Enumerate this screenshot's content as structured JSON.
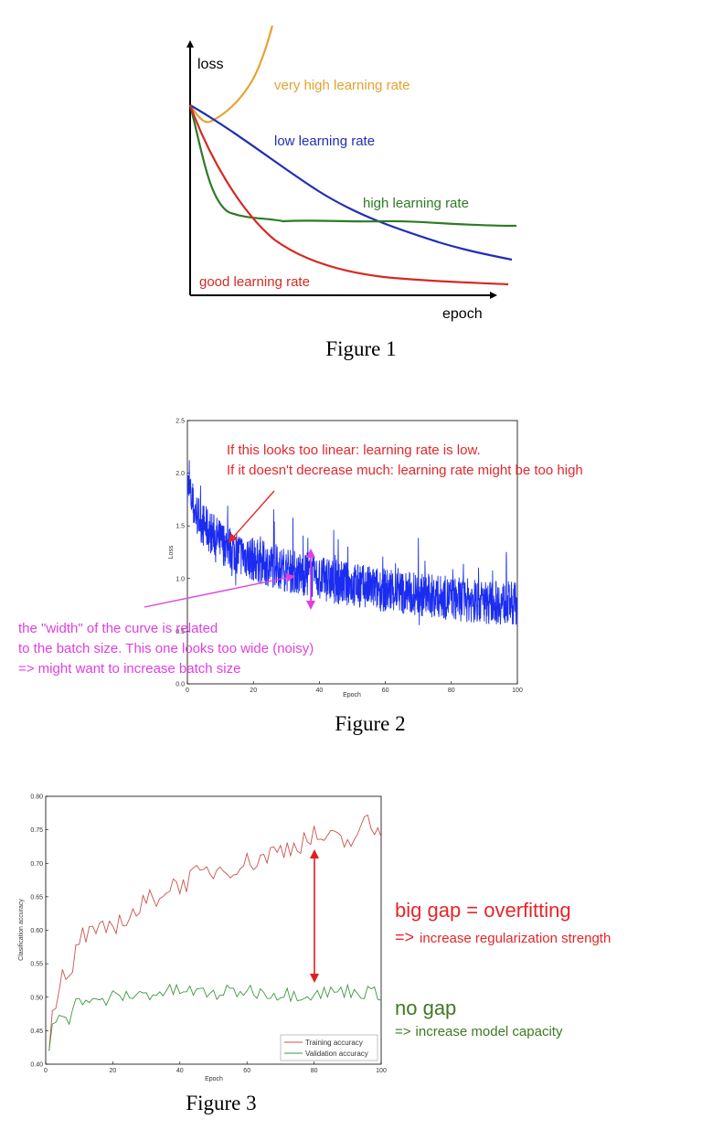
{
  "chart_data": [
    {
      "type": "line",
      "caption": "Figure 1",
      "ylabel": "loss",
      "xlabel": "epoch",
      "series": [
        {
          "name": "very high learning rate",
          "color": "#E6A22F"
        },
        {
          "name": "low learning rate",
          "color": "#1F2FB5"
        },
        {
          "name": "high learning rate",
          "color": "#2E7A26"
        },
        {
          "name": "good learning rate",
          "color": "#D42A24"
        }
      ]
    },
    {
      "type": "line",
      "caption": "Figure 2",
      "xlabel": "Epoch",
      "ylabel": "Loss",
      "xlim": [
        0,
        100
      ],
      "ylim": [
        0.0,
        2.5
      ],
      "xticks": [
        "0",
        "20",
        "40",
        "60",
        "80",
        "100"
      ],
      "yticks": [
        "0.0",
        "0.5",
        "1.0",
        "1.5",
        "2.0",
        "2.5"
      ],
      "series": [
        {
          "name": "",
          "color": "#1A2CF0",
          "x": [
            0,
            2,
            5,
            10,
            15,
            20,
            30,
            40,
            50,
            60,
            70,
            80,
            90,
            100
          ],
          "y": [
            1.9,
            1.65,
            1.5,
            1.35,
            1.25,
            1.18,
            1.08,
            1.0,
            0.94,
            0.89,
            0.85,
            0.81,
            0.78,
            0.76
          ]
        }
      ],
      "annotations": [
        {
          "lines": [
            "If this looks too linear: learning rate is low.",
            "If it doesn't decrease much: learning rate might be too high"
          ],
          "color": "#E5262B"
        },
        {
          "lines": [
            "the \"width\" of the curve is related",
            "to the batch size. This one looks too wide (noisy)",
            "=> might want to increase batch size"
          ],
          "color": "#E040E0"
        }
      ]
    },
    {
      "type": "line",
      "caption": "Figure 3",
      "xlabel": "Epoch",
      "ylabel": "Clasification accuracy",
      "xlim": [
        0,
        100
      ],
      "ylim": [
        0.4,
        0.8
      ],
      "xticks": [
        "0",
        "20",
        "40",
        "60",
        "80",
        "100"
      ],
      "yticks": [
        "0.40",
        "0.45",
        "0.50",
        "0.55",
        "0.60",
        "0.65",
        "0.70",
        "0.75",
        "0.80"
      ],
      "legend": "bottom-right",
      "series": [
        {
          "name": "Training accuracy",
          "color": "#C9534E",
          "x": [
            1,
            2,
            3,
            5,
            7,
            10,
            12,
            15,
            20,
            25,
            30,
            35,
            40,
            50,
            60,
            70,
            80,
            90,
            96,
            100
          ],
          "y": [
            0.42,
            0.48,
            0.47,
            0.53,
            0.52,
            0.59,
            0.59,
            0.59,
            0.61,
            0.62,
            0.64,
            0.66,
            0.67,
            0.69,
            0.7,
            0.72,
            0.74,
            0.73,
            0.76,
            0.74
          ]
        },
        {
          "name": "Validation accuracy",
          "color": "#3C9A3C",
          "x": [
            1,
            2,
            3,
            5,
            7,
            10,
            15,
            20,
            30,
            40,
            50,
            60,
            70,
            80,
            90,
            100
          ],
          "y": [
            0.42,
            0.46,
            0.47,
            0.48,
            0.47,
            0.5,
            0.49,
            0.5,
            0.505,
            0.51,
            0.505,
            0.51,
            0.505,
            0.505,
            0.51,
            0.505
          ]
        }
      ],
      "annotations": [
        {
          "text": "big gap = overfitting",
          "color": "#E5262B"
        },
        {
          "text_prefix": "=>",
          "text": "increase regularization strength",
          "color": "#E5262B"
        },
        {
          "text": "no gap",
          "color": "#3E7A23"
        },
        {
          "text_prefix": "=>",
          "text": "increase model capacity",
          "color": "#3E7A23"
        }
      ]
    }
  ]
}
